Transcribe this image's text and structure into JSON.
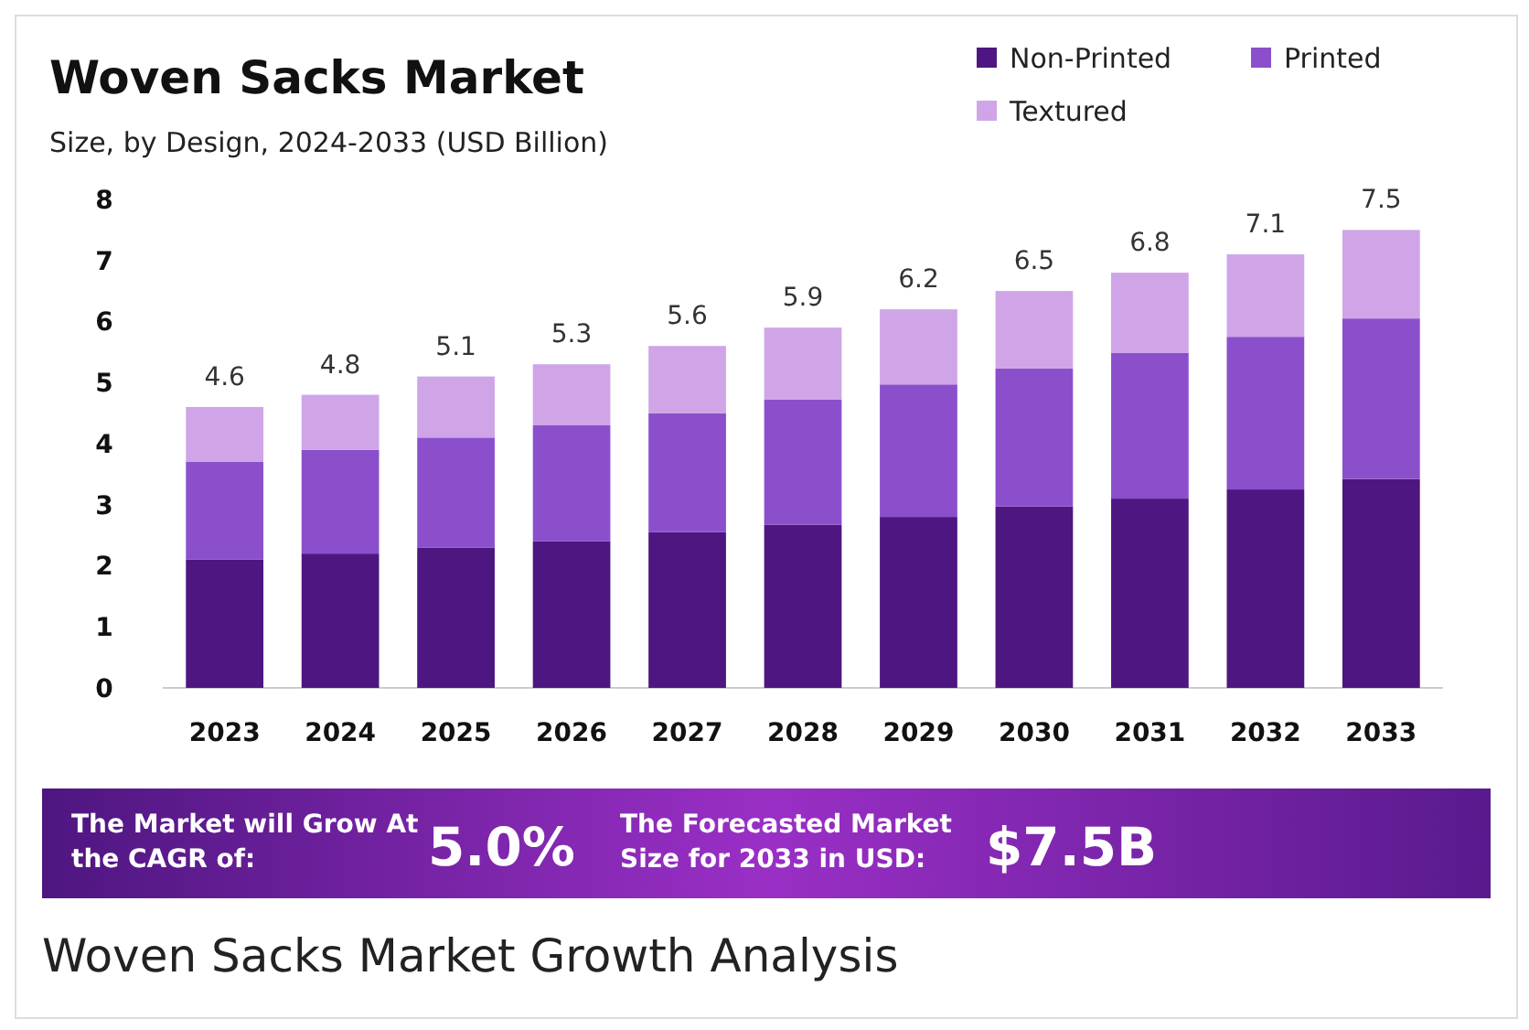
{
  "chart_data": {
    "type": "bar",
    "title": "Woven Sacks Market",
    "subtitle": "Size, by Design, 2024-2033 (USD Billion)",
    "categories": [
      "2023",
      "2024",
      "2025",
      "2026",
      "2027",
      "2028",
      "2029",
      "2030",
      "2031",
      "2032",
      "2033"
    ],
    "series": [
      {
        "name": "Non-Printed",
        "color": "#4e1680",
        "values": [
          2.1,
          2.2,
          2.3,
          2.4,
          2.55,
          2.67,
          2.8,
          2.97,
          3.1,
          3.25,
          3.42
        ]
      },
      {
        "name": "Printed",
        "color": "#8b4fcc",
        "values": [
          1.6,
          1.7,
          1.8,
          1.9,
          1.95,
          2.05,
          2.17,
          2.26,
          2.39,
          2.5,
          2.63
        ]
      },
      {
        "name": "Textured",
        "color": "#cfa5e8",
        "values": [
          0.9,
          0.9,
          1.0,
          1.0,
          1.1,
          1.18,
          1.23,
          1.27,
          1.31,
          1.35,
          1.45
        ]
      }
    ],
    "stacked": true,
    "totals": [
      "4.6",
      "4.8",
      "5.1",
      "5.3",
      "5.6",
      "5.9",
      "6.2",
      "6.5",
      "6.8",
      "7.1",
      "7.5"
    ],
    "ylim": [
      0,
      8
    ],
    "yticks": [
      0,
      1,
      2,
      3,
      4,
      5,
      6,
      7,
      8
    ],
    "legend": "top right",
    "annotations": [
      "The Market will Grow At the CAGR of:",
      "5.0%",
      "The Forecasted Market Size for 2033 in USD:",
      "$7.5B",
      "Woven Sacks Market Growth Analysis"
    ]
  }
}
